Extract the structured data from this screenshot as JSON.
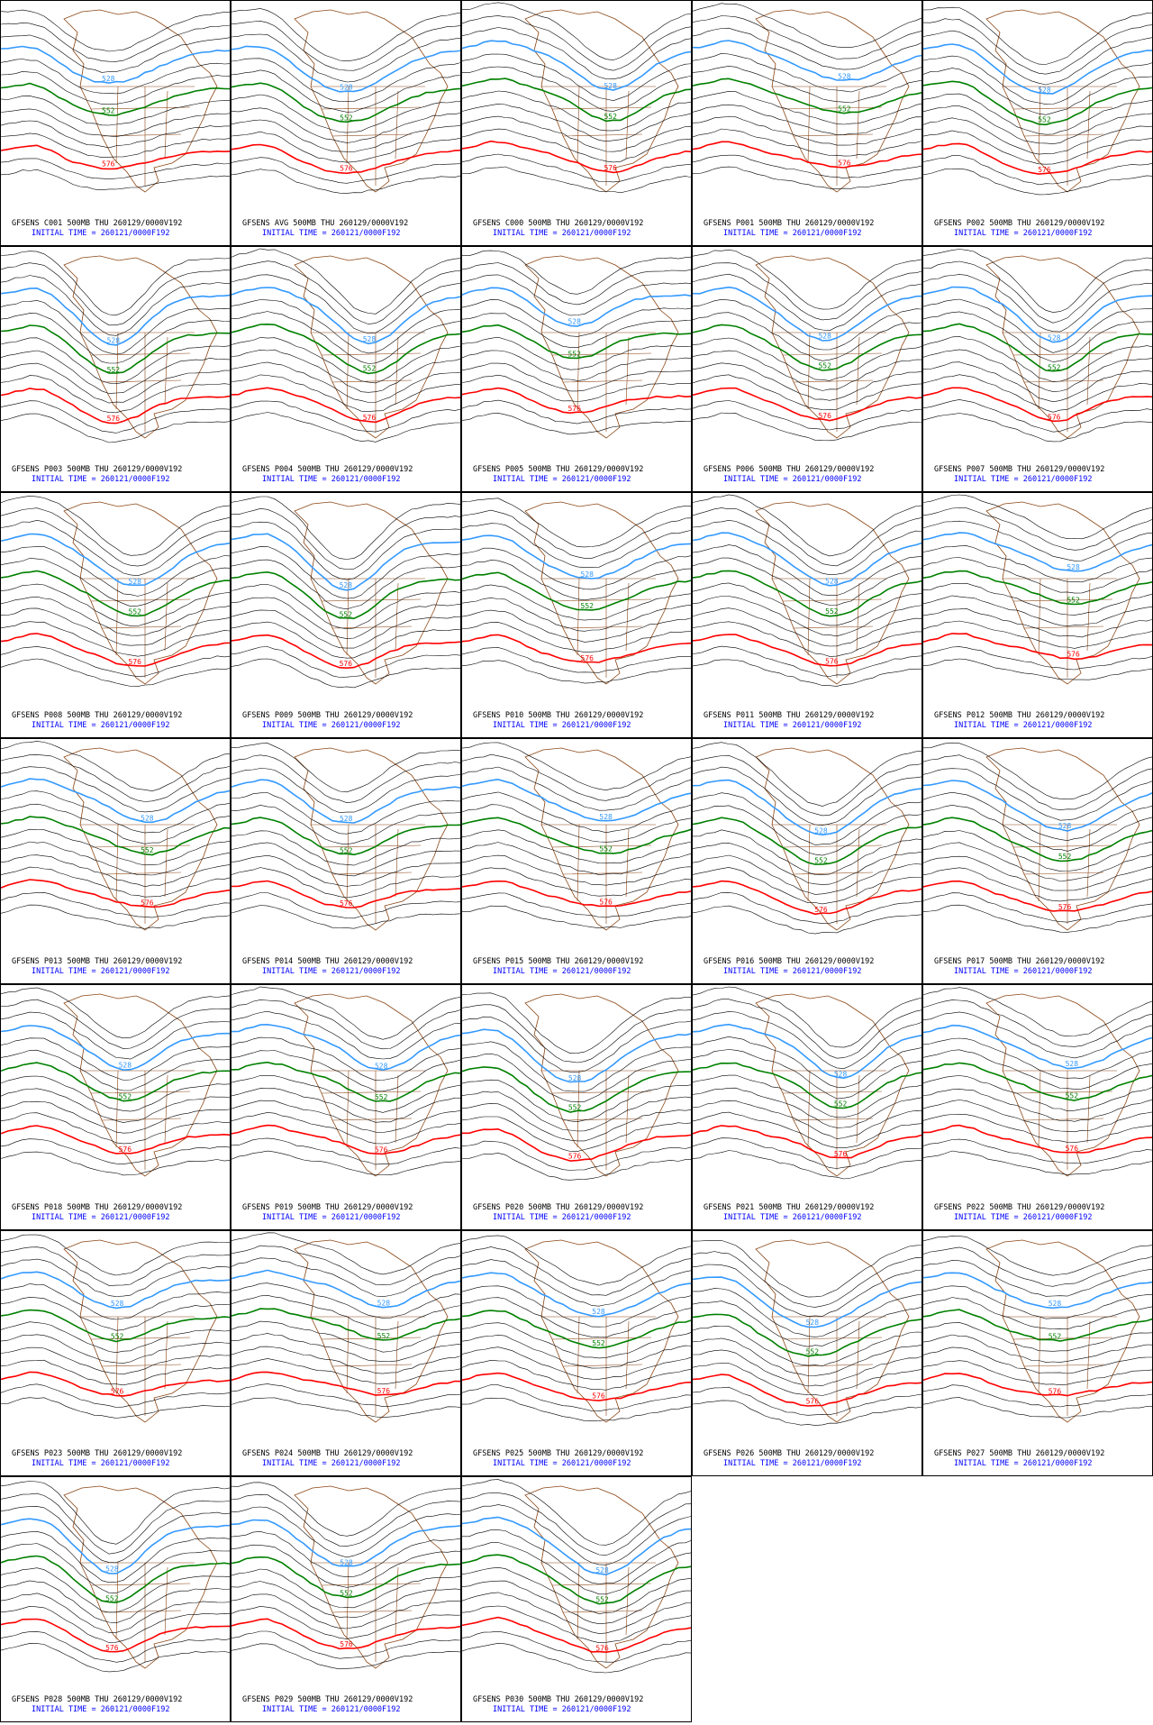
{
  "contour_levels": [
    {
      "label": "528",
      "color": "#3399ff"
    },
    {
      "label": "552",
      "color": "#008000"
    },
    {
      "label": "576",
      "color": "#ff0000"
    }
  ],
  "initial_time": "INITIAL TIME = 260121/0000F192",
  "panels": [
    {
      "title": "GFSENS C001 500MB THU 260129/0000V192"
    },
    {
      "title": "GFSENS AVG 500MB THU 260129/0000V192"
    },
    {
      "title": "GFSENS C000 500MB THU 260129/0000V192"
    },
    {
      "title": "GFSENS P001 500MB THU 260129/0000V192"
    },
    {
      "title": "GFSENS P002 500MB THU 260129/0000V192"
    },
    {
      "title": "GFSENS P003 500MB THU 260129/0000V192"
    },
    {
      "title": "GFSENS P004 500MB THU 260129/0000V192"
    },
    {
      "title": "GFSENS P005 500MB THU 260129/0000V192"
    },
    {
      "title": "GFSENS P006 500MB THU 260129/0000V192"
    },
    {
      "title": "GFSENS P007 500MB THU 260129/0000V192"
    },
    {
      "title": "GFSENS P008 500MB THU 260129/0000V192"
    },
    {
      "title": "GFSENS P009 500MB THU 260129/0000V192"
    },
    {
      "title": "GFSENS P010 500MB THU 260129/0000V192"
    },
    {
      "title": "GFSENS P011 500MB THU 260129/0000V192"
    },
    {
      "title": "GFSENS P012 500MB THU 260129/0000V192"
    },
    {
      "title": "GFSENS P013 500MB THU 260129/0000V192"
    },
    {
      "title": "GFSENS P014 500MB THU 260129/0000V192"
    },
    {
      "title": "GFSENS P015 500MB THU 260129/0000V192"
    },
    {
      "title": "GFSENS P016 500MB THU 260129/0000V192"
    },
    {
      "title": "GFSENS P017 500MB THU 260129/0000V192"
    },
    {
      "title": "GFSENS P018 500MB THU 260129/0000V192"
    },
    {
      "title": "GFSENS P019 500MB THU 260129/0000V192"
    },
    {
      "title": "GFSENS P020 500MB THU 260129/0000V192"
    },
    {
      "title": "GFSENS P021 500MB THU 260129/0000V192"
    },
    {
      "title": "GFSENS P022 500MB THU 260129/0000V192"
    },
    {
      "title": "GFSENS P023 500MB THU 260129/0000V192"
    },
    {
      "title": "GFSENS P024 500MB THU 260129/0000V192"
    },
    {
      "title": "GFSENS P025 500MB THU 260129/0000V192"
    },
    {
      "title": "GFSENS P026 500MB THU 260129/0000V192"
    },
    {
      "title": "GFSENS P027 500MB THU 260129/0000V192"
    },
    {
      "title": "GFSENS P028 500MB THU 260129/0000V192"
    },
    {
      "title": "GFSENS P029 500MB THU 260129/0000V192"
    },
    {
      "title": "GFSENS P030 500MB THU 260129/0000V192"
    }
  ]
}
